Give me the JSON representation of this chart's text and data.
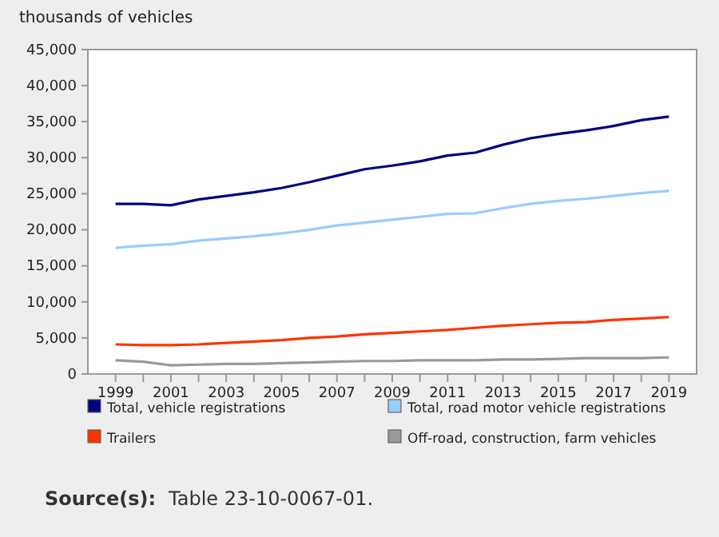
{
  "chart_data": {
    "type": "line",
    "ylabel": "thousands of vehicles",
    "x": [
      1999,
      2000,
      2001,
      2002,
      2003,
      2004,
      2005,
      2006,
      2007,
      2008,
      2009,
      2010,
      2011,
      2012,
      2013,
      2014,
      2015,
      2016,
      2017,
      2018,
      2019
    ],
    "series": [
      {
        "name": "Total, vehicle registrations",
        "color": "#000080",
        "values": [
          23600,
          23600,
          23400,
          24200,
          24700,
          25200,
          25800,
          26600,
          27500,
          28400,
          28900,
          29500,
          30300,
          30700,
          31800,
          32700,
          33300,
          33800,
          34400,
          35200,
          35700
        ]
      },
      {
        "name": "Total, road motor vehicle registrations",
        "color": "#99ccff",
        "values": [
          17500,
          17800,
          18000,
          18500,
          18800,
          19100,
          19500,
          20000,
          20600,
          21000,
          21400,
          21800,
          22200,
          22300,
          23000,
          23600,
          24000,
          24300,
          24700,
          25100,
          25400
        ]
      },
      {
        "name": "Trailers",
        "color": "#ff3300",
        "values": [
          4100,
          4000,
          4000,
          4100,
          4300,
          4500,
          4700,
          5000,
          5200,
          5500,
          5700,
          5900,
          6100,
          6400,
          6700,
          6900,
          7100,
          7200,
          7500,
          7700,
          7900
        ]
      },
      {
        "name": "Off-road, construction, farm vehicles",
        "color": "#999999",
        "values": [
          1900,
          1700,
          1200,
          1300,
          1400,
          1400,
          1500,
          1600,
          1700,
          1800,
          1800,
          1900,
          1900,
          1900,
          2000,
          2000,
          2100,
          2200,
          2200,
          2200,
          2300
        ]
      }
    ],
    "xlim": [
      1998,
      2020
    ],
    "xticks": [
      1999,
      {
        "value": 2000,
        "label": null
      },
      2001,
      {
        "value": 2002,
        "label": null
      },
      2003,
      {
        "value": 2004,
        "label": null
      },
      2005,
      {
        "value": 2006,
        "label": null
      },
      2007,
      {
        "value": 2008,
        "label": null
      },
      2009,
      {
        "value": 2010,
        "label": null
      },
      2011,
      {
        "value": 2012,
        "label": null
      },
      2013,
      {
        "value": 2014,
        "label": null
      },
      2015,
      {
        "value": 2016,
        "label": null
      },
      2017,
      {
        "value": 2018,
        "label": null
      },
      2019
    ],
    "ylim": [
      0,
      45000
    ],
    "yticks": [
      0,
      {
        "value": 5000,
        "label": "5,000"
      },
      {
        "value": 10000,
        "label": "10,000"
      },
      {
        "value": 15000,
        "label": "15,000"
      },
      {
        "value": 20000,
        "label": "20,000"
      },
      {
        "value": 25000,
        "label": "25,000"
      },
      {
        "value": 30000,
        "label": "30,000"
      },
      {
        "value": 35000,
        "label": "35,000"
      },
      {
        "value": 40000,
        "label": "40,000"
      },
      {
        "value": 45000,
        "label": "45,000"
      }
    ],
    "grid": false,
    "legend": "bottom",
    "marker": "none",
    "line_style": "solid",
    "annotations": [
      "Source(s):",
      "Table 23-10-0067-01."
    ]
  }
}
